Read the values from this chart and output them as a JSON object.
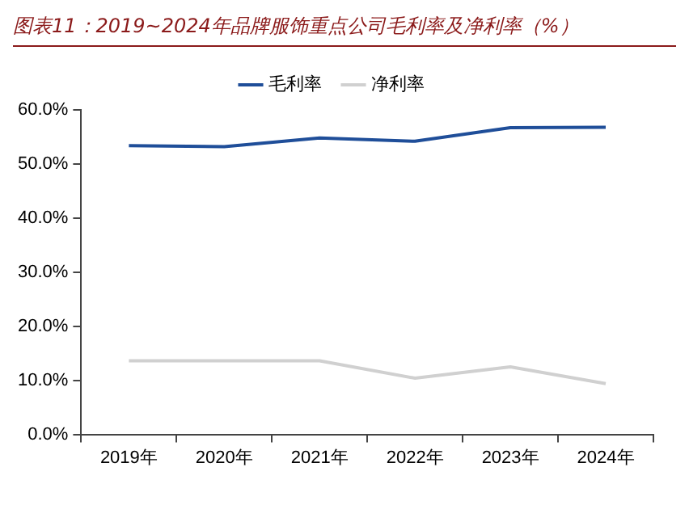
{
  "chart_data": {
    "type": "line",
    "title": "图表11：2019~2024年品牌服饰重点公司毛利率及净利率（%）",
    "categories": [
      "2019年",
      "2020年",
      "2021年",
      "2022年",
      "2023年",
      "2024年"
    ],
    "series": [
      {
        "name": "毛利率",
        "color": "#1f4e99",
        "values": [
          53.4,
          53.2,
          54.8,
          54.2,
          56.7,
          56.8
        ]
      },
      {
        "name": "净利率",
        "color": "#d0d0d0",
        "values": [
          13.6,
          13.6,
          13.6,
          10.4,
          12.5,
          9.4
        ]
      }
    ],
    "ylim": [
      0,
      60
    ],
    "yticks": [
      {
        "value": 0,
        "label": "0.0%"
      },
      {
        "value": 10,
        "label": "10.0%"
      },
      {
        "value": 20,
        "label": "20.0%"
      },
      {
        "value": 30,
        "label": "30.0%"
      },
      {
        "value": 40,
        "label": "40.0%"
      },
      {
        "value": 50,
        "label": "50.0%"
      },
      {
        "value": 60,
        "label": "60.0%"
      }
    ],
    "grid": false,
    "legend": "top",
    "marker": "none",
    "line_style": "solid"
  }
}
